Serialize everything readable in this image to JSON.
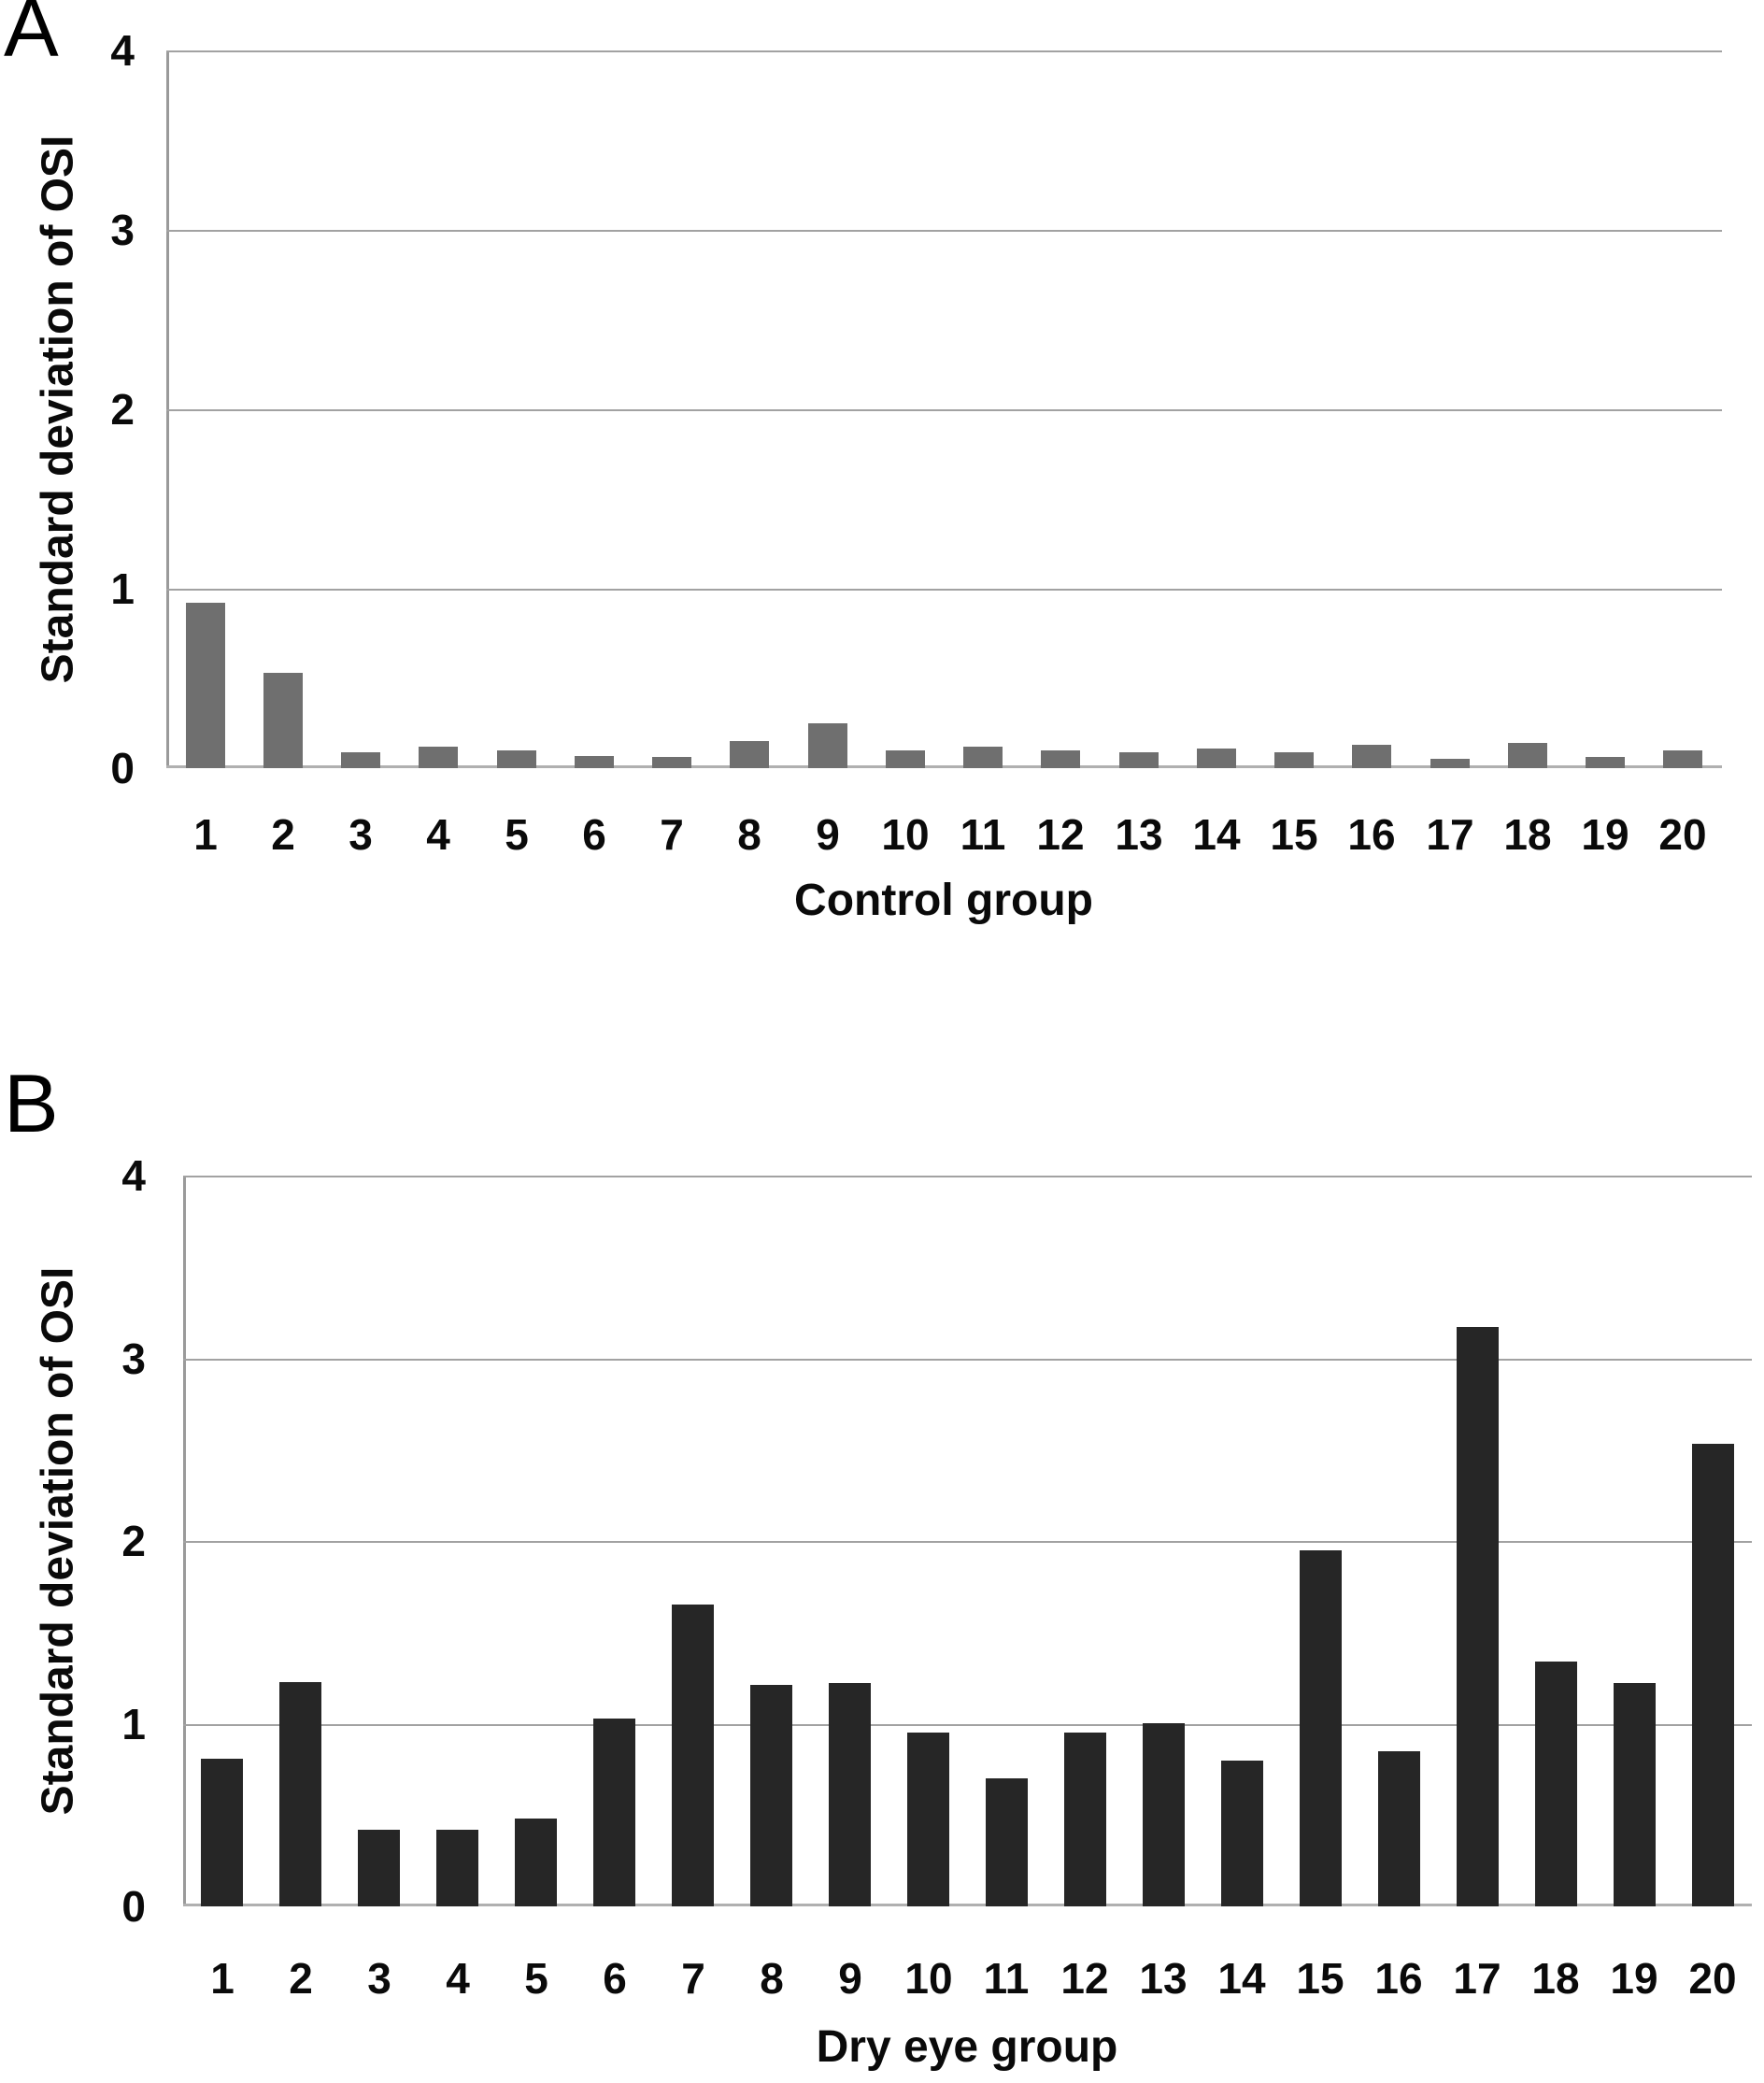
{
  "panels": [
    {
      "letter": "A"
    },
    {
      "letter": "B"
    }
  ],
  "chart_data": [
    {
      "type": "bar",
      "panel": "A",
      "title": "",
      "xlabel": "Control group",
      "ylabel": "Standard deviation of OSI",
      "categories": [
        "1",
        "2",
        "3",
        "4",
        "5",
        "6",
        "7",
        "8",
        "9",
        "10",
        "11",
        "12",
        "13",
        "14",
        "15",
        "16",
        "17",
        "18",
        "19",
        "20"
      ],
      "values": [
        0.92,
        0.53,
        0.09,
        0.12,
        0.1,
        0.07,
        0.06,
        0.15,
        0.25,
        0.1,
        0.12,
        0.1,
        0.09,
        0.11,
        0.09,
        0.13,
        0.05,
        0.14,
        0.06,
        0.1
      ],
      "ylim": [
        0,
        4
      ],
      "yticks": [
        "4",
        "3",
        "2",
        "1",
        "0"
      ],
      "grid": true,
      "legend": false,
      "bar_color": "#6f6f6f"
    },
    {
      "type": "bar",
      "panel": "B",
      "title": "",
      "xlabel": "Dry eye group",
      "ylabel": "Standard deviation of OSI",
      "categories": [
        "1",
        "2",
        "3",
        "4",
        "5",
        "6",
        "7",
        "8",
        "9",
        "10",
        "11",
        "12",
        "13",
        "14",
        "15",
        "16",
        "17",
        "18",
        "19",
        "20"
      ],
      "values": [
        0.81,
        1.23,
        0.42,
        0.42,
        0.48,
        1.03,
        1.65,
        1.21,
        1.22,
        0.95,
        0.7,
        0.95,
        1.0,
        0.8,
        1.95,
        0.85,
        3.17,
        1.34,
        1.22,
        2.53
      ],
      "ylim": [
        0,
        4
      ],
      "yticks": [
        "4",
        "3",
        "2",
        "1",
        "0"
      ],
      "grid": true,
      "legend": false,
      "bar_color": "#262626"
    }
  ],
  "colors": {
    "background": "#ffffff",
    "gridline": "#a2a2a2",
    "axis_line": "#9a9a9a",
    "baseline": "#b0b0b0",
    "text": "#0a0a0a",
    "panel_a_bar": "#6f6f6f",
    "panel_b_bar": "#262626"
  }
}
